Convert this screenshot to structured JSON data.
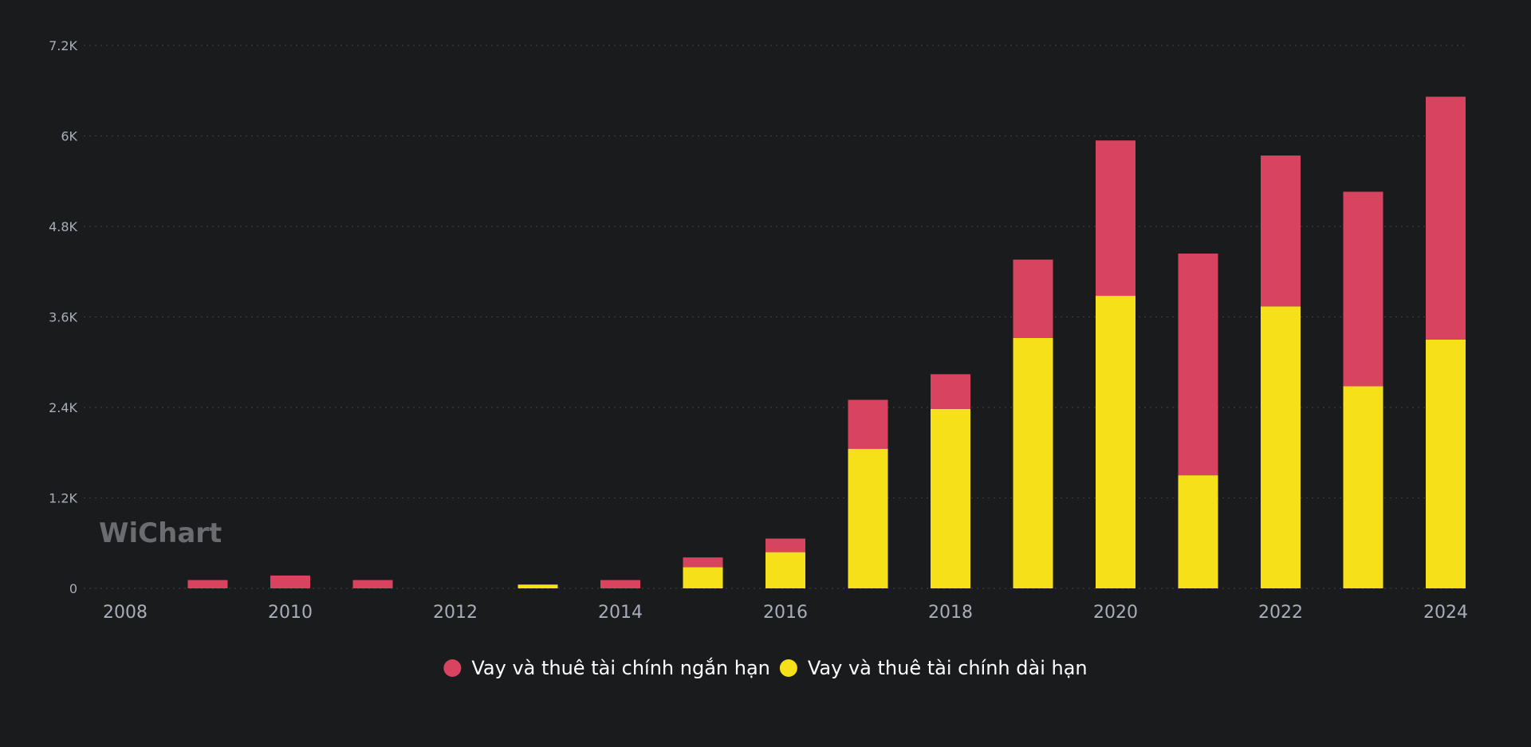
{
  "chart_data": {
    "type": "bar",
    "stacked": true,
    "categories": [
      2008,
      2009,
      2010,
      2011,
      2012,
      2013,
      2014,
      2015,
      2016,
      2017,
      2018,
      2019,
      2020,
      2021,
      2022,
      2023,
      2024
    ],
    "x_ticks": [
      "2008",
      "2010",
      "2012",
      "2014",
      "2016",
      "2018",
      "2020",
      "2022",
      "2024"
    ],
    "y_ticks": [
      {
        "value": 0,
        "label": "0"
      },
      {
        "value": 1200,
        "label": "1.2K"
      },
      {
        "value": 2400,
        "label": "2.4K"
      },
      {
        "value": 3600,
        "label": "3.6K"
      },
      {
        "value": 4800,
        "label": "4.8K"
      },
      {
        "value": 6000,
        "label": "6K"
      },
      {
        "value": 7200,
        "label": "7.2K"
      }
    ],
    "ylim": [
      0,
      7200
    ],
    "grid": "horizontal-dotted",
    "legend_position": "bottom-center",
    "series": [
      {
        "name": "Vay và thuê tài chính dài hạn",
        "color": "#f5e01a",
        "values": [
          0,
          0,
          0,
          0,
          0,
          50,
          0,
          280,
          480,
          1850,
          2380,
          3320,
          3880,
          1500,
          3740,
          2680,
          3300
        ]
      },
      {
        "name": "Vay và thuê tài chính ngắn hạn",
        "color": "#d8435f",
        "values": [
          0,
          110,
          170,
          110,
          0,
          0,
          110,
          130,
          180,
          650,
          460,
          1040,
          2060,
          2940,
          2000,
          2580,
          3220
        ]
      }
    ],
    "legend": [
      {
        "label": "Vay và thuê tài chính ngắn hạn",
        "color": "#d8435f"
      },
      {
        "label": "Vay và thuê tài chính dài hạn",
        "color": "#f5e01a"
      }
    ]
  },
  "watermark": "WiChart"
}
